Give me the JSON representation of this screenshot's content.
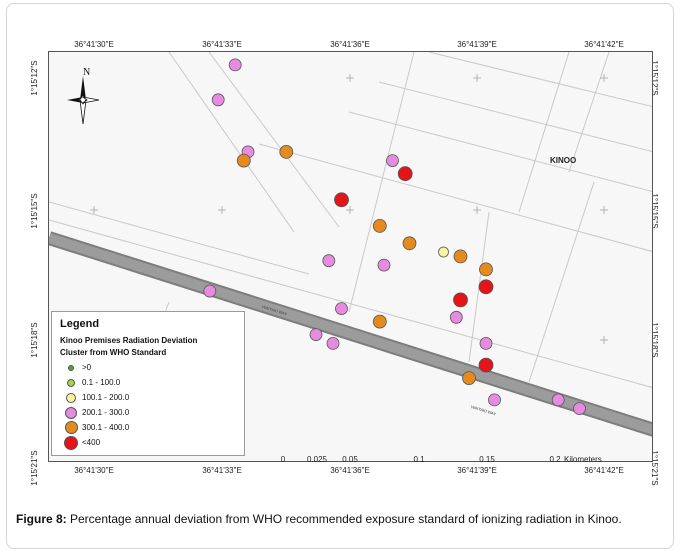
{
  "map": {
    "place_label": "KINOO",
    "north_label": "N",
    "coords_top": [
      "36°41'30\"E",
      "36°41'33\"E",
      "36°41'36\"E",
      "36°41'39\"E",
      "36°41'42\"E"
    ],
    "coords_bottom": [
      "36°41'30\"E",
      "36°41'33\"E",
      "36°41'36\"E",
      "36°41'39\"E",
      "36°41'42\"E"
    ],
    "coords_left": [
      "1°15'12\"S",
      "1°15'15\"S",
      "1°15'18\"S",
      "1°15'21\"S"
    ],
    "coords_right": [
      "1°15'12\"S",
      "1°15'15\"S",
      "1°15'18\"S",
      "1°15'21\"S"
    ],
    "road_label_1": "WAIYAKI WAY",
    "road_label_2": "WAIYAKI WAY"
  },
  "scale_bar": {
    "ticks": [
      "0",
      "0.025",
      "0.05",
      "0.1",
      "0.15",
      "0.2"
    ],
    "unit": "Kilometers"
  },
  "legend": {
    "title": "Legend",
    "subtitle_1": "Kinoo Premises Radiation Deviation",
    "subtitle_2": "Cluster from WHO Standard",
    "classes": [
      {
        "label": ">0",
        "color": "#3fae2a",
        "size": 6
      },
      {
        "label": "0.1 - 100.0",
        "color": "#a5d64a",
        "size": 8
      },
      {
        "label": "100.1 - 200.0",
        "color": "#f7f3a0",
        "size": 10
      },
      {
        "label": "200.1 - 300.0",
        "color": "#e58be0",
        "size": 12
      },
      {
        "label": "300.1 - 400.0",
        "color": "#e38b1f",
        "size": 13
      },
      {
        "label": "<400",
        "color": "#e3151b",
        "size": 14
      }
    ]
  },
  "points": [
    {
      "cls": 3,
      "lat": "1°15'11.7\"S",
      "lon": "36°41'33.3\"E"
    },
    {
      "cls": 3,
      "lat": "1°15'12.5\"S",
      "lon": "36°41'32.9\"E"
    },
    {
      "cls": 3,
      "lat": "1°15'13.7\"S",
      "lon": "36°41'33.6\"E"
    },
    {
      "cls": 4,
      "lat": "1°15'13.9\"S",
      "lon": "36°41'33.5\"E"
    },
    {
      "cls": 4,
      "lat": "1°15'13.7\"S",
      "lon": "36°41'34.5\"E"
    },
    {
      "cls": 3,
      "lat": "1°15'13.9\"S",
      "lon": "36°41'37.0\"E"
    },
    {
      "cls": 5,
      "lat": "1°15'14.2\"S",
      "lon": "36°41'37.3\"E"
    },
    {
      "cls": 5,
      "lat": "1°15'14.8\"S",
      "lon": "36°41'35.8\"E"
    },
    {
      "cls": 4,
      "lat": "1°15'15.4\"S",
      "lon": "36°41'36.7\"E"
    },
    {
      "cls": 4,
      "lat": "1°15'15.8\"S",
      "lon": "36°41'37.4\"E"
    },
    {
      "cls": 2,
      "lat": "1°15'16.0\"S",
      "lon": "36°41'38.2\"E"
    },
    {
      "cls": 4,
      "lat": "1°15'16.1\"S",
      "lon": "36°41'38.6\"E"
    },
    {
      "cls": 3,
      "lat": "1°15'16.2\"S",
      "lon": "36°41'35.5\"E"
    },
    {
      "cls": 3,
      "lat": "1°15'16.3\"S",
      "lon": "36°41'36.8\"E"
    },
    {
      "cls": 4,
      "lat": "1°15'16.4\"S",
      "lon": "36°41'39.2\"E"
    },
    {
      "cls": 5,
      "lat": "1°15'16.8\"S",
      "lon": "36°41'39.2\"E"
    },
    {
      "cls": 5,
      "lat": "1°15'17.1\"S",
      "lon": "36°41'38.6\"E"
    },
    {
      "cls": 3,
      "lat": "1°15'16.9\"S",
      "lon": "36°41'32.7\"E"
    },
    {
      "cls": 3,
      "lat": "1°15'17.3\"S",
      "lon": "36°41'35.8\"E"
    },
    {
      "cls": 4,
      "lat": "1°15'17.6\"S",
      "lon": "36°41'36.7\"E"
    },
    {
      "cls": 3,
      "lat": "1°15'17.5\"S",
      "lon": "36°41'38.5\"E"
    },
    {
      "cls": 3,
      "lat": "1°15'17.9\"S",
      "lon": "36°41'35.2\"E"
    },
    {
      "cls": 3,
      "lat": "1°15'18.1\"S",
      "lon": "36°41'35.6\"E"
    },
    {
      "cls": 3,
      "lat": "1°15'18.1\"S",
      "lon": "36°41'39.2\"E"
    },
    {
      "cls": 5,
      "lat": "1°15'18.6\"S",
      "lon": "36°41'39.2\"E"
    },
    {
      "cls": 4,
      "lat": "1°15'18.9\"S",
      "lon": "36°41'38.8\"E"
    },
    {
      "cls": 3,
      "lat": "1°15'19.4\"S",
      "lon": "36°41'39.4\"E"
    },
    {
      "cls": 3,
      "lat": "1°15'19.4\"S",
      "lon": "36°41'40.9\"E"
    },
    {
      "cls": 3,
      "lat": "1°15'19.6\"S",
      "lon": "36°41'41.4\"E"
    }
  ],
  "caption": {
    "label": "Figure 8:",
    "text": " Percentage annual deviation from WHO recommended exposure standard of ionizing radiation in Kinoo."
  }
}
